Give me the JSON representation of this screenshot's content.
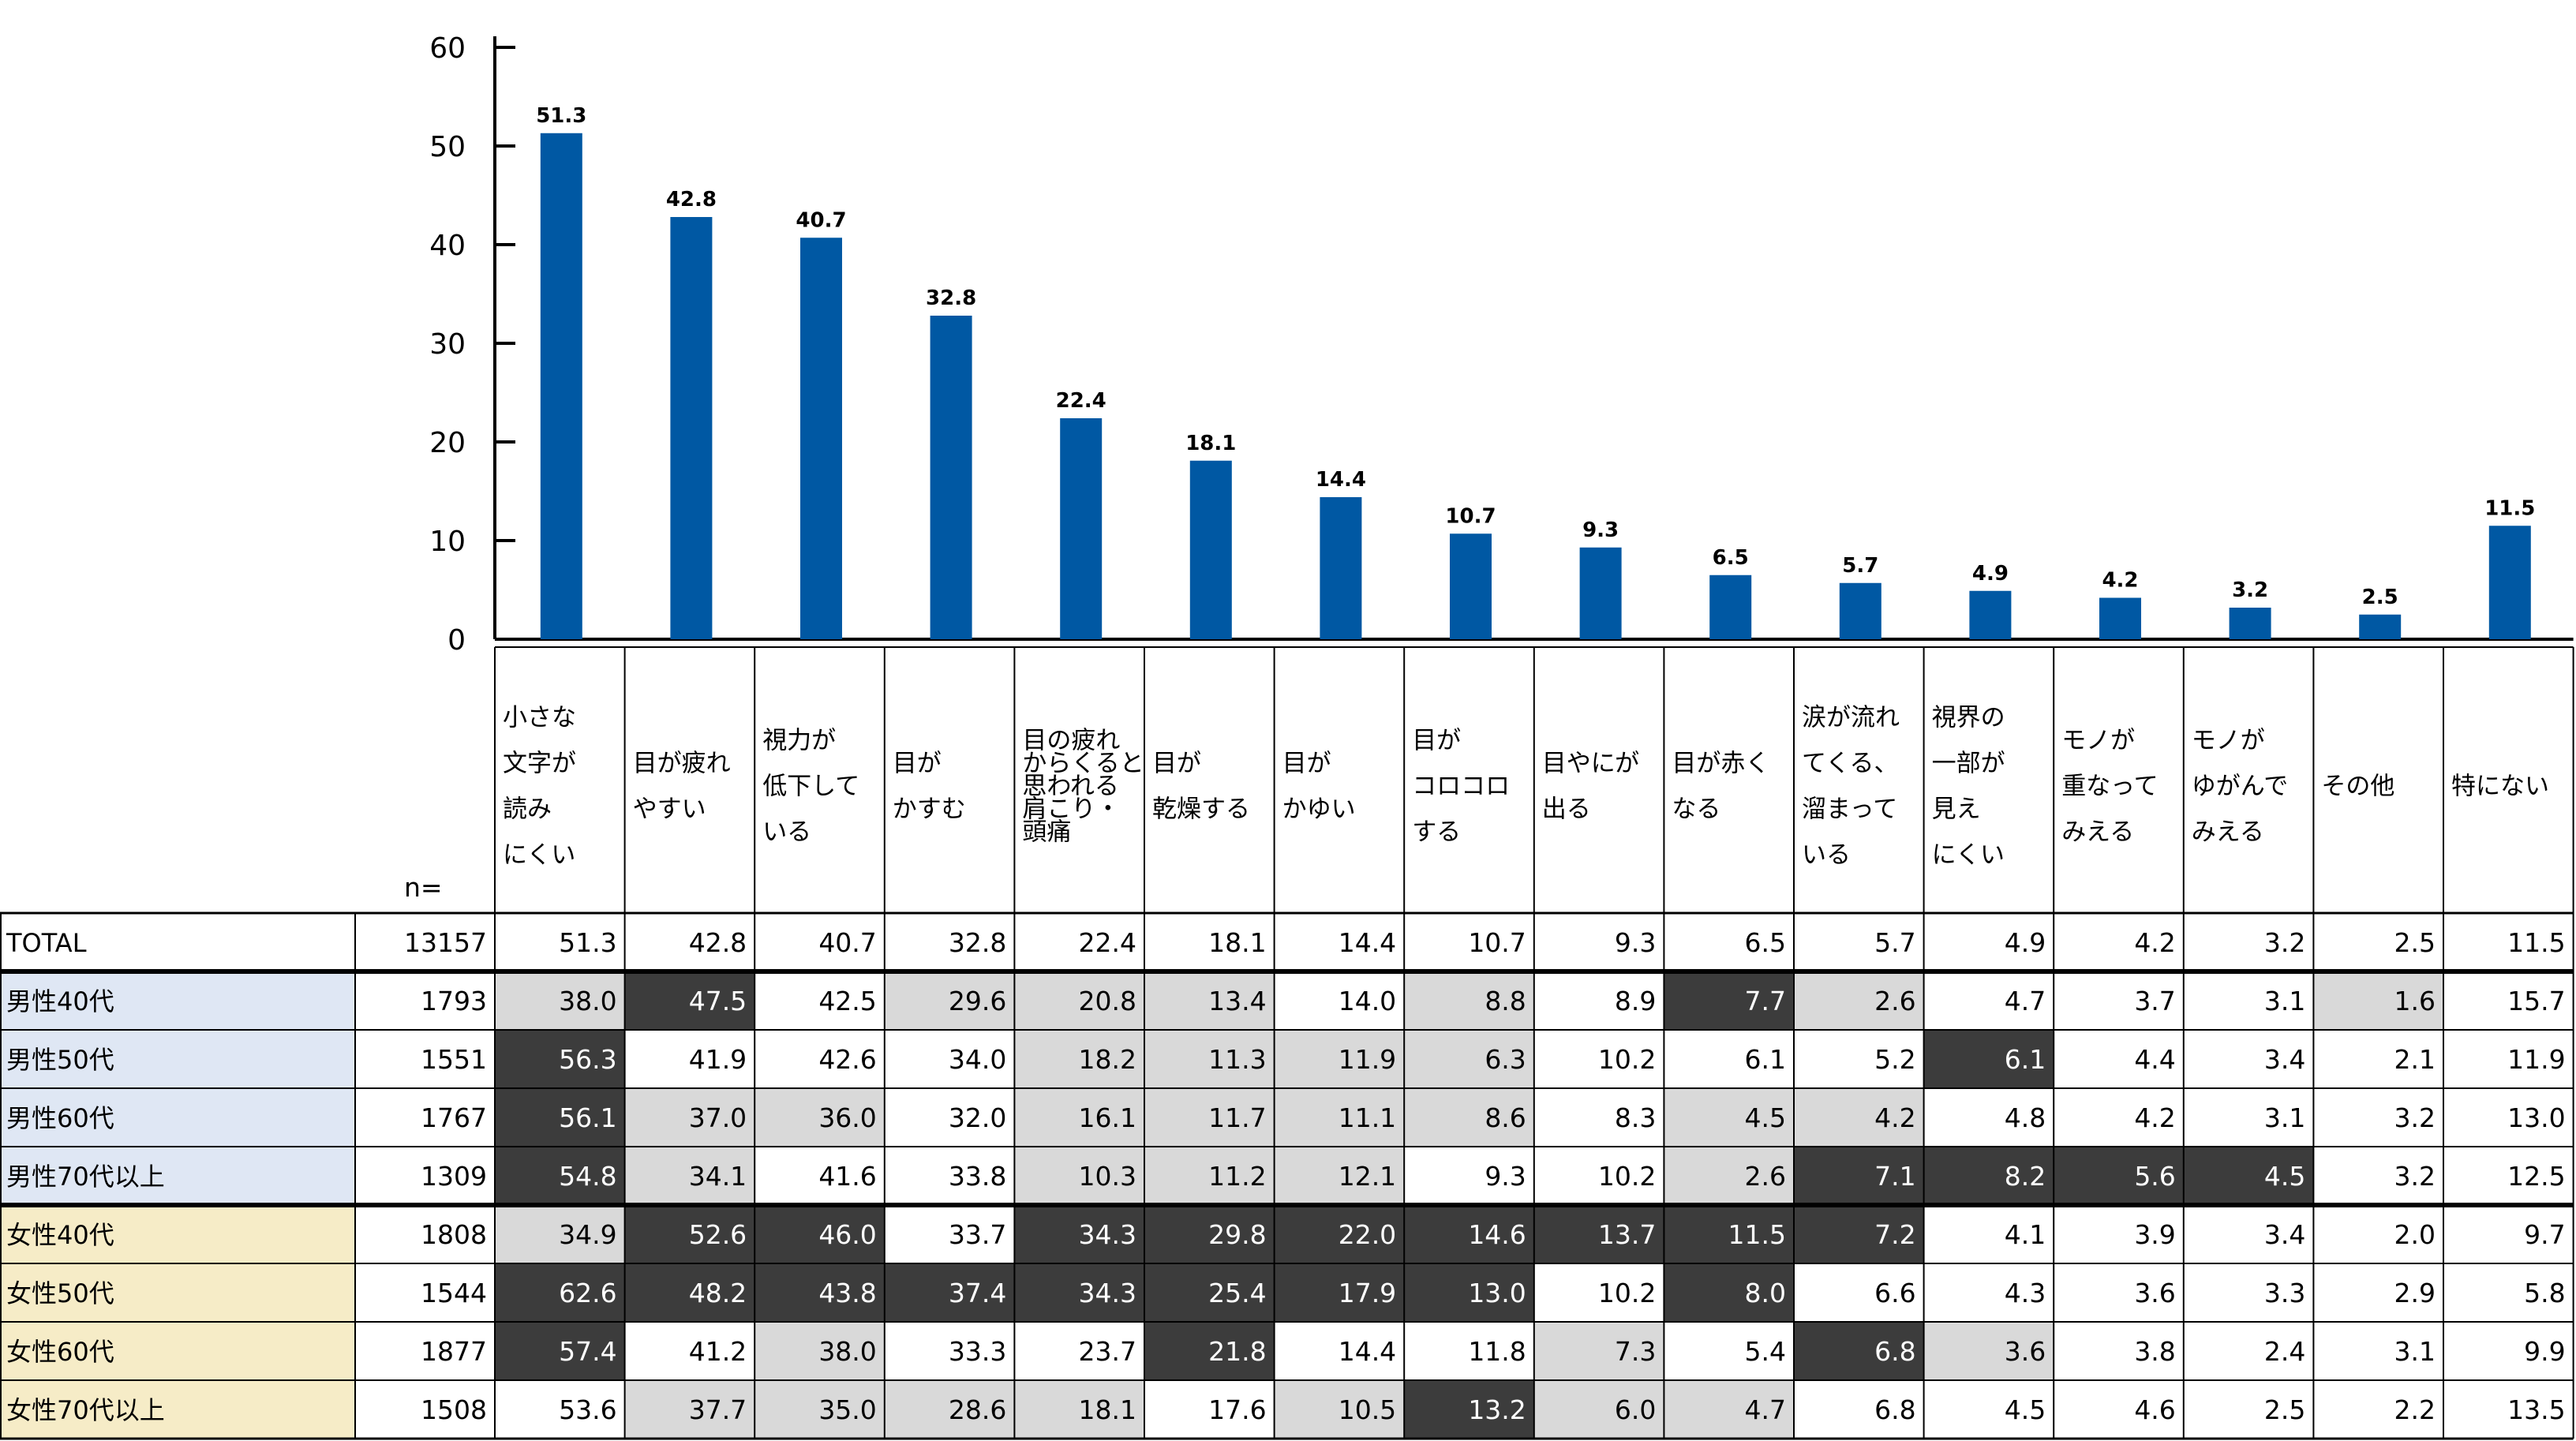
{
  "chart_data": {
    "type": "bar",
    "categories": [
      "小さな\n文字が\n読み\nにくい",
      "目が疲れ\nやすい",
      "視力が\n低下して\nいる",
      "目が\nかすむ",
      "目の疲れ\nからくると\n思われる\n肩こり・\n頭痛",
      "目が\n乾燥する",
      "目が\nかゆい",
      "目が\nコロコロ\nする",
      "目やにが\n出る",
      "目が赤く\nなる",
      "涙が流れ\nてくる、\n溜まって\nいる",
      "視界の\n一部が\n見え\nにくい",
      "モノが\n重なって\nみえる",
      "モノが\nゆがんで\nみえる",
      "その他",
      "特にない"
    ],
    "values": [
      51.3,
      42.8,
      40.7,
      32.8,
      22.4,
      18.1,
      14.4,
      10.7,
      9.3,
      6.5,
      5.7,
      4.9,
      4.2,
      3.2,
      2.5,
      11.5
    ],
    "ylim": [
      0,
      60
    ],
    "yticks": [
      "0",
      "10",
      "20",
      "30",
      "40",
      "50",
      "60"
    ],
    "bar_color": "#0058a3",
    "grid": false
  },
  "table": {
    "n_header": "n=",
    "rows": [
      {
        "label": "TOTAL",
        "n": "13157",
        "group": "total",
        "values": [
          "51.3",
          "42.8",
          "40.7",
          "32.8",
          "22.4",
          "18.1",
          "14.4",
          "10.7",
          "9.3",
          "6.5",
          "5.7",
          "4.9",
          "4.2",
          "3.2",
          "2.5",
          "11.5"
        ],
        "shade": [
          "",
          "",
          "",
          "",
          "",
          "",
          "",
          "",
          "",
          "",
          "",
          "",
          "",
          "",
          "",
          ""
        ]
      },
      {
        "label": "男性40代",
        "n": "1793",
        "group": "male",
        "values": [
          "38.0",
          "47.5",
          "42.5",
          "29.6",
          "20.8",
          "13.4",
          "14.0",
          "8.8",
          "8.9",
          "7.7",
          "2.6",
          "4.7",
          "3.7",
          "3.1",
          "1.6",
          "15.7"
        ],
        "shade": [
          "l",
          "d",
          "",
          "l",
          "l",
          "l",
          "",
          "l",
          "",
          "d",
          "l",
          "",
          "",
          "",
          "l",
          ""
        ]
      },
      {
        "label": "男性50代",
        "n": "1551",
        "group": "male",
        "values": [
          "56.3",
          "41.9",
          "42.6",
          "34.0",
          "18.2",
          "11.3",
          "11.9",
          "6.3",
          "10.2",
          "6.1",
          "5.2",
          "6.1",
          "4.4",
          "3.4",
          "2.1",
          "11.9"
        ],
        "shade": [
          "d",
          "",
          "",
          "",
          "l",
          "l",
          "l",
          "l",
          "",
          "",
          "",
          "d",
          "",
          "",
          "",
          ""
        ]
      },
      {
        "label": "男性60代",
        "n": "1767",
        "group": "male",
        "values": [
          "56.1",
          "37.0",
          "36.0",
          "32.0",
          "16.1",
          "11.7",
          "11.1",
          "8.6",
          "8.3",
          "4.5",
          "4.2",
          "4.8",
          "4.2",
          "3.1",
          "3.2",
          "13.0"
        ],
        "shade": [
          "d",
          "l",
          "l",
          "",
          "l",
          "l",
          "l",
          "l",
          "",
          "l",
          "l",
          "",
          "",
          "",
          "",
          ""
        ]
      },
      {
        "label": "男性70代以上",
        "n": "1309",
        "group": "male",
        "values": [
          "54.8",
          "34.1",
          "41.6",
          "33.8",
          "10.3",
          "11.2",
          "12.1",
          "9.3",
          "10.2",
          "2.6",
          "7.1",
          "8.2",
          "5.6",
          "4.5",
          "3.2",
          "12.5"
        ],
        "shade": [
          "d",
          "l",
          "",
          "",
          "l",
          "l",
          "l",
          "",
          "",
          "l",
          "d",
          "d",
          "d",
          "d",
          "",
          ""
        ]
      },
      {
        "label": "女性40代",
        "n": "1808",
        "group": "female",
        "values": [
          "34.9",
          "52.6",
          "46.0",
          "33.7",
          "34.3",
          "29.8",
          "22.0",
          "14.6",
          "13.7",
          "11.5",
          "7.2",
          "4.1",
          "3.9",
          "3.4",
          "2.0",
          "9.7"
        ],
        "shade": [
          "l",
          "d",
          "d",
          "",
          "d",
          "d",
          "d",
          "d",
          "d",
          "d",
          "d",
          "",
          "",
          "",
          "",
          ""
        ]
      },
      {
        "label": "女性50代",
        "n": "1544",
        "group": "female",
        "values": [
          "62.6",
          "48.2",
          "43.8",
          "37.4",
          "34.3",
          "25.4",
          "17.9",
          "13.0",
          "10.2",
          "8.0",
          "6.6",
          "4.3",
          "3.6",
          "3.3",
          "2.9",
          "5.8"
        ],
        "shade": [
          "d",
          "d",
          "d",
          "d",
          "d",
          "d",
          "d",
          "d",
          "",
          "d",
          "",
          "",
          "",
          "",
          "",
          ""
        ]
      },
      {
        "label": "女性60代",
        "n": "1877",
        "group": "female",
        "values": [
          "57.4",
          "41.2",
          "38.0",
          "33.3",
          "23.7",
          "21.8",
          "14.4",
          "11.8",
          "7.3",
          "5.4",
          "6.8",
          "3.6",
          "3.8",
          "2.4",
          "3.1",
          "9.9"
        ],
        "shade": [
          "d",
          "",
          "l",
          "",
          "",
          "d",
          "",
          "",
          "l",
          "",
          "d",
          "l",
          "",
          "",
          "",
          ""
        ]
      },
      {
        "label": "女性70代以上",
        "n": "1508",
        "group": "female",
        "values": [
          "53.6",
          "37.7",
          "35.0",
          "28.6",
          "18.1",
          "17.6",
          "10.5",
          "13.2",
          "6.0",
          "4.7",
          "6.8",
          "4.5",
          "4.6",
          "2.5",
          "2.2",
          "13.5"
        ],
        "shade": [
          "",
          "l",
          "l",
          "l",
          "l",
          "",
          "l",
          "d",
          "l",
          "l",
          "",
          "",
          "",
          "",
          "",
          ""
        ]
      }
    ]
  },
  "colors": {
    "bar": "#0058a3",
    "cell_dark": "#3c3c3c",
    "cell_light": "#d9d9d9",
    "male_label_bg": "#dfe7f4",
    "female_label_bg": "#f6ecc7",
    "border": "#000000"
  }
}
